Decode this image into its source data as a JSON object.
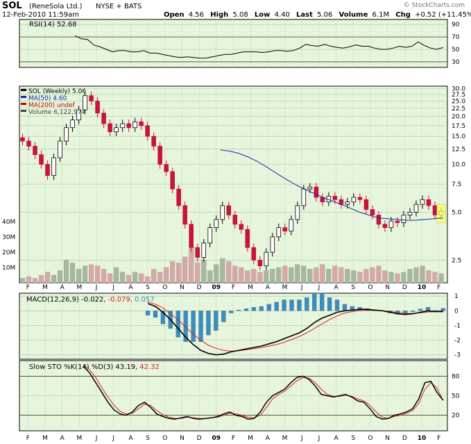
{
  "header": {
    "symbol": "SOL",
    "company": "(ReneSola Ltd.)",
    "exchange": "NYSE + BATS",
    "date": "12-Feb-2010 11:59am",
    "watermark": "© StockCharts.com",
    "quote": [
      {
        "label": "Open",
        "value": "4.56"
      },
      {
        "label": "High",
        "value": "5.08"
      },
      {
        "label": "Low",
        "value": "4.40"
      },
      {
        "label": "Last",
        "value": "5.06"
      },
      {
        "label": "Volume",
        "value": "6.1M"
      },
      {
        "label": "Chg",
        "value": "+0.52 (+11.45%)"
      }
    ]
  },
  "colors": {
    "panel_bg": "#e6f5dc",
    "grid": "#a8c8a8",
    "up": "#000000",
    "down": "#c8143c",
    "ma50": "#1428a0",
    "ma200": "#c80000",
    "vol_up": "#a8b8a0",
    "vol_down": "#d8a8a8",
    "histogram": "#3c8cbe",
    "signal": "#dc1e1e"
  },
  "chart_data": [
    {
      "type": "line",
      "panel": "rsi",
      "legend": "RSI(14) 52.68",
      "y_ticks": [
        30,
        50,
        70,
        90
      ],
      "ylim": [
        21,
        98
      ],
      "reference_lines": [
        30,
        70
      ],
      "series": [
        {
          "values": [
            72,
            67,
            66,
            57,
            54,
            50,
            46,
            48,
            48,
            46,
            46,
            48,
            44,
            44,
            42,
            40,
            38,
            37,
            38,
            37,
            36,
            36,
            38,
            40,
            42,
            42,
            44,
            46,
            46,
            46,
            45,
            46,
            48,
            48,
            47,
            48,
            52,
            58,
            56,
            55,
            58,
            55,
            53,
            52,
            54,
            57,
            55,
            55,
            52,
            50,
            50,
            52,
            55,
            53,
            55,
            62,
            56,
            52,
            50,
            53
          ]
        }
      ]
    },
    {
      "type": "candlestick",
      "panel": "price",
      "legend": [
        {
          "text": "SOL (Weekly) 5.06",
          "color": "#000000"
        },
        {
          "text": "MA(50) 4.60",
          "color": "#1428a0"
        },
        {
          "text": "MA(200) undef",
          "color": "#c80000"
        },
        {
          "text": "Volume 6,122,974",
          "color": "#404040"
        }
      ],
      "scale": "log",
      "y_ticks": [
        2.5,
        5.0,
        7.5,
        10.0,
        12.5,
        15.0,
        17.5,
        20.0,
        22.5,
        25.0,
        27.5,
        30.0
      ],
      "ylim": [
        1.8,
        31
      ],
      "volume_ticks": [
        "10M",
        "20M",
        "30M",
        "40M"
      ],
      "volume_lim": [
        0,
        50
      ],
      "x_labels": [
        "F",
        "M",
        "A",
        "M",
        "J",
        "J",
        "A",
        "S",
        "O",
        "N",
        "D",
        "09",
        "F",
        "M",
        "A",
        "M",
        "J",
        "J",
        "A",
        "S",
        "O",
        "N",
        "D",
        "10",
        "F"
      ],
      "closes": [
        14,
        13,
        11.5,
        10,
        8.5,
        11,
        14,
        17,
        19,
        22,
        27,
        25,
        21,
        18,
        16,
        17,
        18,
        17,
        18.5,
        17.5,
        15,
        13,
        10,
        9,
        7,
        5.5,
        4.2,
        3.0,
        2.6,
        3.2,
        4.0,
        4.5,
        5.5,
        4.8,
        4.2,
        3.9,
        3.0,
        2.5,
        2.3,
        2.8,
        3.5,
        4.0,
        3.8,
        4.5,
        5.5,
        7.0,
        7.2,
        6.2,
        5.8,
        6.3,
        6.0,
        5.6,
        5.8,
        6.2,
        6.0,
        5.2,
        4.8,
        4.2,
        4.0,
        4.4,
        4.3,
        4.8,
        5.0,
        5.6,
        6.0,
        5.5,
        4.8,
        5.06
      ],
      "volume_millions": [
        3,
        4,
        3,
        5,
        7,
        5,
        8,
        15,
        13,
        9,
        11,
        12,
        11,
        9,
        6,
        10,
        7,
        5,
        7,
        6,
        4,
        9,
        7,
        10,
        14,
        13,
        17,
        24,
        13,
        15,
        8,
        12,
        16,
        14,
        11,
        10,
        8,
        9,
        7,
        8,
        9,
        10,
        11,
        10,
        12,
        11,
        9,
        10,
        12,
        9,
        11,
        10,
        9,
        8,
        7,
        9,
        10,
        11,
        8,
        7,
        6,
        7,
        9,
        10,
        11,
        8,
        7,
        6
      ],
      "ma50": [
        12.3,
        12.1,
        11.7,
        11.1,
        10.4,
        9.6,
        8.8,
        8.1,
        7.5,
        7.0,
        6.6,
        6.2,
        5.9,
        5.6,
        5.3,
        5.0,
        4.8,
        4.6,
        4.55,
        4.5,
        4.45,
        4.45,
        4.5,
        4.55,
        4.6
      ]
    },
    {
      "type": "line",
      "panel": "macd",
      "legend": [
        {
          "text": "MACD(12,26,9) -0.022,",
          "color": "#000000"
        },
        {
          "text": "-0.079,",
          "color": "#dc1e1e"
        },
        {
          "text": "0.057",
          "color": "#3c8cbe"
        }
      ],
      "y_ticks": [
        -3,
        -2,
        -1,
        0,
        1
      ],
      "ylim": [
        -3.3,
        1.2
      ],
      "macd": [
        0.5,
        0.3,
        -0.1,
        -0.6,
        -1.2,
        -1.8,
        -2.3,
        -2.7,
        -2.9,
        -3.0,
        -2.95,
        -2.8,
        -2.7,
        -2.6,
        -2.5,
        -2.4,
        -2.25,
        -2.1,
        -1.9,
        -1.7,
        -1.5,
        -1.2,
        -0.8,
        -0.5,
        -0.3,
        -0.1,
        0.0,
        0.05,
        0.1,
        0.1,
        0.05,
        0.0,
        -0.1,
        -0.2,
        -0.25,
        -0.2,
        -0.1,
        0.0,
        -0.05,
        -0.022
      ],
      "signal": [
        0.6,
        0.45,
        0.2,
        -0.2,
        -0.6,
        -1.1,
        -1.6,
        -2.0,
        -2.35,
        -2.55,
        -2.7,
        -2.75,
        -2.72,
        -2.65,
        -2.58,
        -2.5,
        -2.4,
        -2.3,
        -2.15,
        -1.95,
        -1.75,
        -1.5,
        -1.2,
        -0.9,
        -0.6,
        -0.35,
        -0.15,
        -0.05,
        0.02,
        0.05,
        0.03,
        0.0,
        -0.05,
        -0.12,
        -0.18,
        -0.18,
        -0.14,
        -0.08,
        -0.06,
        -0.079
      ]
    },
    {
      "type": "line",
      "panel": "sto",
      "legend": [
        {
          "text": "Slow STO %K(14) %D(3) 43.19,",
          "color": "#000000"
        },
        {
          "text": "42.32",
          "color": "#dc1e1e"
        }
      ],
      "y_ticks": [
        20,
        50,
        80
      ],
      "ylim": [
        -4,
        104
      ],
      "reference_lines": [
        20,
        80
      ],
      "k": [
        95,
        85,
        70,
        55,
        40,
        28,
        22,
        20,
        25,
        35,
        40,
        32,
        22,
        18,
        15,
        14,
        16,
        18,
        15,
        14,
        15,
        16,
        18,
        22,
        25,
        20,
        18,
        14,
        15,
        25,
        40,
        50,
        55,
        60,
        70,
        78,
        80,
        75,
        65,
        52,
        50,
        48,
        50,
        52,
        48,
        42,
        40,
        30,
        18,
        14,
        15,
        20,
        22,
        25,
        30,
        45,
        70,
        72,
        55,
        43.19
      ],
      "d": [
        98,
        90,
        78,
        62,
        48,
        35,
        26,
        22,
        23,
        30,
        37,
        35,
        27,
        21,
        17,
        15,
        15,
        17,
        16,
        15,
        15,
        16,
        17,
        20,
        23,
        22,
        20,
        17,
        16,
        20,
        32,
        45,
        52,
        57,
        65,
        73,
        78,
        77,
        70,
        60,
        52,
        49,
        49,
        51,
        49,
        45,
        42,
        35,
        25,
        17,
        15,
        18,
        20,
        23,
        27,
        38,
        60,
        70,
        62,
        42.32
      ]
    }
  ]
}
